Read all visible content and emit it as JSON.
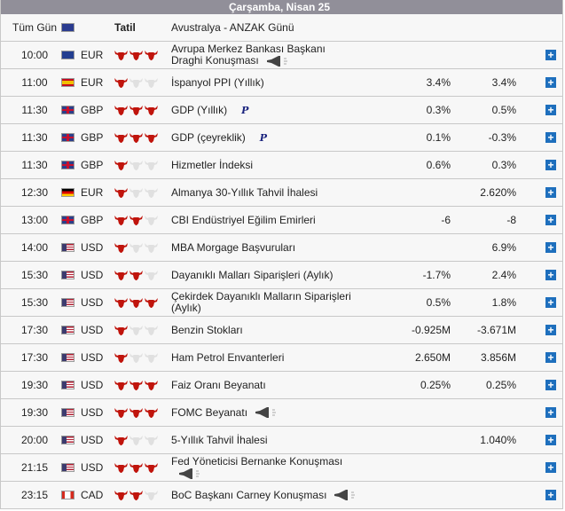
{
  "header": {
    "date": "Çarşamba, Nisan 25"
  },
  "holiday": {
    "time": "Tüm Gün",
    "country": "au",
    "label": "Tatil",
    "event": "Avustralya - ANZAK Günü"
  },
  "colors": {
    "bull": "#c0140c",
    "bull_off": "#e0e0e0",
    "plus": "#1e6fbd",
    "header": "#918f99"
  },
  "events": [
    {
      "time": "10:00",
      "flag": "eu",
      "currency": "EUR",
      "importance": 3,
      "event": "Avrupa Merkez Bankası Başkanı Draghi Konuşması",
      "icon": "speech",
      "actual": "",
      "forecast": ""
    },
    {
      "time": "11:00",
      "flag": "es",
      "currency": "EUR",
      "importance": 1,
      "event": "İspanyol PPI (Yıllık)",
      "icon": "",
      "actual": "3.4%",
      "forecast": "3.4%"
    },
    {
      "time": "11:30",
      "flag": "gb",
      "currency": "GBP",
      "importance": 3,
      "event": "GDP (Yıllık)",
      "icon": "P",
      "actual": "0.3%",
      "forecast": "0.5%"
    },
    {
      "time": "11:30",
      "flag": "gb",
      "currency": "GBP",
      "importance": 3,
      "event": "GDP (çeyreklik)",
      "icon": "P",
      "actual": "0.1%",
      "forecast": "-0.3%"
    },
    {
      "time": "11:30",
      "flag": "gb",
      "currency": "GBP",
      "importance": 1,
      "event": "Hizmetler İndeksi",
      "icon": "",
      "actual": "0.6%",
      "forecast": "0.3%"
    },
    {
      "time": "12:30",
      "flag": "de",
      "currency": "EUR",
      "importance": 1,
      "event": "Almanya 30-Yıllık Tahvil İhalesi",
      "icon": "",
      "actual": "",
      "forecast": "2.620%"
    },
    {
      "time": "13:00",
      "flag": "gb",
      "currency": "GBP",
      "importance": 2,
      "event": "CBI Endüstriyel Eğilim Emirleri",
      "icon": "",
      "actual": "-6",
      "forecast": "-8"
    },
    {
      "time": "14:00",
      "flag": "us",
      "currency": "USD",
      "importance": 1,
      "event": "MBA Morgage Başvuruları",
      "icon": "",
      "actual": "",
      "forecast": "6.9%"
    },
    {
      "time": "15:30",
      "flag": "us",
      "currency": "USD",
      "importance": 2,
      "event": "Dayanıklı Malları Siparişleri (Aylık)",
      "icon": "",
      "actual": "-1.7%",
      "forecast": "2.4%"
    },
    {
      "time": "15:30",
      "flag": "us",
      "currency": "USD",
      "importance": 3,
      "event": "Çekirdek Dayanıklı Malların Siparişleri (Aylık)",
      "icon": "",
      "actual": "0.5%",
      "forecast": "1.8%"
    },
    {
      "time": "17:30",
      "flag": "us",
      "currency": "USD",
      "importance": 1,
      "event": "Benzin Stokları",
      "icon": "",
      "actual": "-0.925M",
      "forecast": "-3.671M"
    },
    {
      "time": "17:30",
      "flag": "us",
      "currency": "USD",
      "importance": 1,
      "event": "Ham Petrol Envanterleri",
      "icon": "",
      "actual": "2.650M",
      "forecast": "3.856M"
    },
    {
      "time": "19:30",
      "flag": "us",
      "currency": "USD",
      "importance": 3,
      "event": "Faiz Oranı Beyanatı",
      "icon": "",
      "actual": "0.25%",
      "forecast": "0.25%"
    },
    {
      "time": "19:30",
      "flag": "us",
      "currency": "USD",
      "importance": 3,
      "event": "FOMC Beyanatı",
      "icon": "speech",
      "actual": "",
      "forecast": ""
    },
    {
      "time": "20:00",
      "flag": "us",
      "currency": "USD",
      "importance": 1,
      "event": "5-Yıllık Tahvil İhalesi",
      "icon": "",
      "actual": "",
      "forecast": "1.040%"
    },
    {
      "time": "21:15",
      "flag": "us",
      "currency": "USD",
      "importance": 3,
      "event": "Fed Yöneticisi Bernanke Konuşması",
      "icon": "speech",
      "actual": "",
      "forecast": ""
    },
    {
      "time": "23:15",
      "flag": "ca",
      "currency": "CAD",
      "importance": 2,
      "event": "BoC Başkanı Carney Konuşması",
      "icon": "speech",
      "actual": "",
      "forecast": ""
    }
  ]
}
